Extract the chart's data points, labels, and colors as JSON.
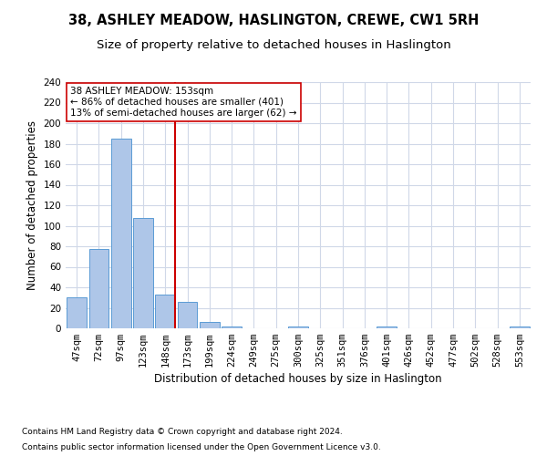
{
  "title": "38, ASHLEY MEADOW, HASLINGTON, CREWE, CW1 5RH",
  "subtitle": "Size of property relative to detached houses in Haslington",
  "xlabel": "Distribution of detached houses by size in Haslington",
  "ylabel": "Number of detached properties",
  "footnote1": "Contains HM Land Registry data © Crown copyright and database right 2024.",
  "footnote2": "Contains public sector information licensed under the Open Government Licence v3.0.",
  "categories": [
    "47sqm",
    "72sqm",
    "97sqm",
    "123sqm",
    "148sqm",
    "173sqm",
    "199sqm",
    "224sqm",
    "249sqm",
    "275sqm",
    "300sqm",
    "325sqm",
    "351sqm",
    "376sqm",
    "401sqm",
    "426sqm",
    "452sqm",
    "477sqm",
    "502sqm",
    "528sqm",
    "553sqm"
  ],
  "values": [
    30,
    77,
    185,
    108,
    33,
    26,
    6,
    2,
    0,
    0,
    2,
    0,
    0,
    0,
    2,
    0,
    0,
    0,
    0,
    0,
    2
  ],
  "bar_color": "#aec6e8",
  "bar_edge_color": "#5b9bd5",
  "vline_x_index": 4,
  "vline_color": "#cc0000",
  "annotation_text": "38 ASHLEY MEADOW: 153sqm\n← 86% of detached houses are smaller (401)\n13% of semi-detached houses are larger (62) →",
  "annotation_box_color": "#ffffff",
  "annotation_box_edge": "#cc0000",
  "ylim": [
    0,
    240
  ],
  "yticks": [
    0,
    20,
    40,
    60,
    80,
    100,
    120,
    140,
    160,
    180,
    200,
    220,
    240
  ],
  "background_color": "#ffffff",
  "grid_color": "#d0d8e8",
  "title_fontsize": 10.5,
  "subtitle_fontsize": 9.5,
  "ylabel_fontsize": 8.5,
  "xlabel_fontsize": 8.5,
  "tick_fontsize": 7.5,
  "footnote_fontsize": 6.5
}
